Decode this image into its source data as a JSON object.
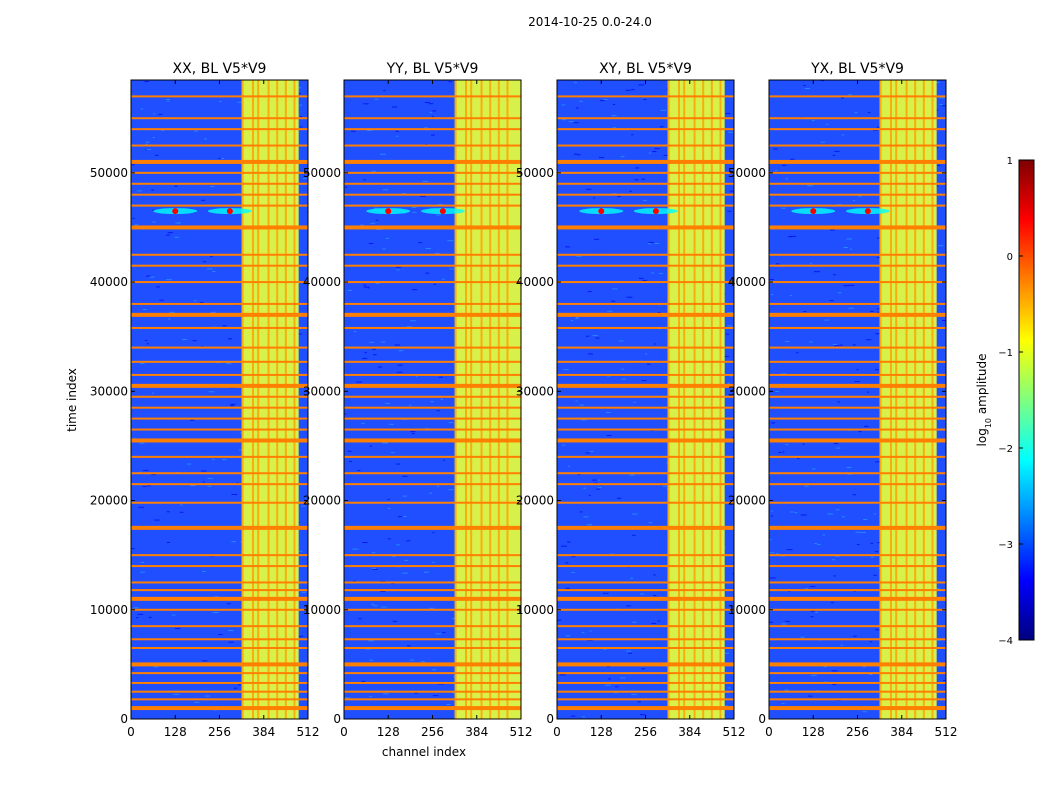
{
  "figure": {
    "suptitle": "2014-10-25 0.0-24.0",
    "xlabel": "channel index",
    "ylabel": "time index",
    "colorbar_label_main": "log",
    "colorbar_label_sub": "10",
    "colorbar_label_tail": " amplitude"
  },
  "colors": {
    "jet_stops": [
      "#00007f",
      "#0000ff",
      "#007fff",
      "#00ffff",
      "#7fff7f",
      "#ffff00",
      "#ff7f00",
      "#ff0000",
      "#7f0000"
    ]
  },
  "chart_data": {
    "type": "heatmap",
    "shared": {
      "xlim": [
        0,
        512
      ],
      "ylim": [
        0,
        58500
      ],
      "xticks": [
        0,
        128,
        256,
        384,
        512
      ],
      "yticks": [
        0,
        10000,
        20000,
        30000,
        40000,
        50000
      ],
      "colorbar": {
        "range": [
          -4,
          1
        ],
        "ticks": [
          -4,
          -3,
          -2,
          -1,
          0,
          1
        ]
      }
    },
    "panels": [
      {
        "title": "XX, BL V5*V9",
        "band_start": 320,
        "band_end": 485,
        "hot_spot_channels": [
          128,
          286
        ],
        "hot_spot_time": 46500
      },
      {
        "title": "YY, BL V5*V9",
        "band_start": 320,
        "band_end": 512,
        "hot_spot_channels": [
          128,
          286
        ],
        "hot_spot_time": 46500
      },
      {
        "title": "XY, BL V5*V9",
        "band_start": 320,
        "band_end": 485,
        "hot_spot_channels": [
          128,
          286
        ],
        "hot_spot_time": 46500
      },
      {
        "title": "YX, BL V5*V9",
        "band_start": 320,
        "band_end": 485,
        "hot_spot_channels": [
          128,
          286
        ],
        "hot_spot_time": 46500
      }
    ],
    "rfi_rows": [
      1000,
      1800,
      2500,
      3300,
      4200,
      5000,
      6500,
      7300,
      8500,
      10000,
      11000,
      11800,
      12500,
      14000,
      15000,
      17500,
      19800,
      21500,
      22500,
      24000,
      25500,
      26500,
      27500,
      28500,
      29500,
      30500,
      31500,
      32700,
      34000,
      35800,
      37000,
      38000,
      40000,
      41500,
      42500,
      45000,
      47000,
      48000,
      49000,
      50000,
      51000,
      52500,
      54000,
      55000,
      57000
    ],
    "band_columns": [
      320,
      350,
      365,
      395,
      420,
      445,
      470
    ]
  }
}
